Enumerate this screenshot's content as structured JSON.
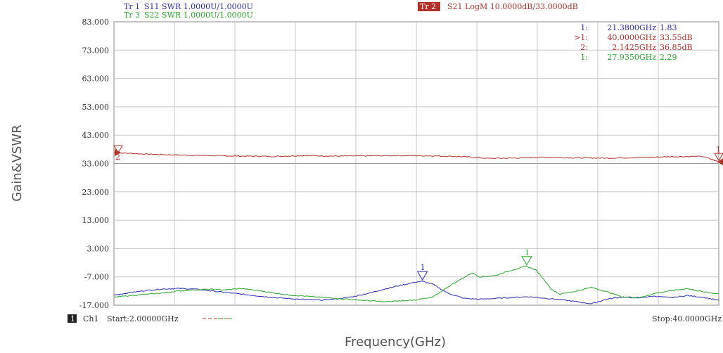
{
  "header": {
    "tr1_tag": "Tr 1",
    "tr1_text": "S11 SWR 1.0000U/1.0000U",
    "tr3_tag": "Tr 3",
    "tr3_text": "S22 SWR 1.0000U/1.0000U",
    "tr2_tag": "Tr 2",
    "tr2_text": "S21 LogM 10.0000dB/33.0000dB"
  },
  "markers_table": [
    {
      "id": "1:",
      "freq": "21.3800GHz",
      "value": "1.83",
      "color": "#2b2bb5"
    },
    {
      "id": ">1:",
      "freq": "40.0000GHz",
      "value": "33.55dB",
      "color": "#b0302a"
    },
    {
      "id": "2:",
      "freq": "2.1425GHz",
      "value": "36.85dB",
      "color": "#b0302a"
    },
    {
      "id": "1:",
      "freq": "27.9350GHz",
      "value": "2.29",
      "color": "#2aa52a"
    }
  ],
  "footer": {
    "ch_tag": "1",
    "ch_label": "Ch1",
    "start": "Start:2.00000GHz",
    "stop": "Stop:40.0000GHz"
  },
  "chart_data": {
    "type": "line",
    "xlabel": "Frequency(GHz)",
    "ylabel": "Gain&VSWR",
    "xlim": [
      2,
      40
    ],
    "ylim": [
      -17,
      83
    ],
    "y_ticks": [
      "83.000",
      "73.000",
      "63.000",
      "53.000",
      "43.000",
      "33.000",
      "23.000",
      "13.000",
      "3.000",
      "-7.000",
      "-17.000"
    ],
    "grid": true,
    "x_gridlines": 10,
    "reference_y": 33,
    "series": [
      {
        "name": "S21 LogM",
        "color": "#b0302a",
        "x": [
          2,
          3,
          4,
          6,
          8,
          10,
          12,
          14,
          16,
          18,
          20,
          22,
          24,
          25.5,
          27,
          29,
          31,
          33,
          35,
          37,
          39,
          40
        ],
        "y": [
          36.8,
          36.6,
          36.3,
          36.0,
          35.8,
          35.6,
          35.5,
          35.8,
          35.6,
          35.7,
          35.8,
          35.7,
          35.4,
          34.8,
          34.9,
          35.2,
          35.0,
          34.9,
          35.1,
          35.4,
          35.5,
          33.6
        ]
      },
      {
        "name": "S11 SWR",
        "color": "#2b2bb5",
        "x": [
          2,
          3,
          4,
          5,
          6,
          7,
          8,
          10,
          12,
          14,
          15,
          16,
          17,
          18,
          19,
          20,
          21,
          21.38,
          22,
          23,
          24,
          25,
          26,
          27,
          28,
          29,
          30,
          31,
          32,
          33,
          34,
          35,
          36,
          37,
          38,
          39,
          40
        ],
        "y": [
          -13.4,
          -12.6,
          -11.8,
          -11.3,
          -11.1,
          -11.3,
          -11.9,
          -13.1,
          -14.3,
          -15.0,
          -15.2,
          -14.8,
          -14.0,
          -12.8,
          -11.3,
          -10.0,
          -8.8,
          -8.6,
          -9.5,
          -12.8,
          -14.6,
          -14.9,
          -14.6,
          -14.3,
          -14.0,
          -14.5,
          -15.0,
          -15.7,
          -16.5,
          -14.8,
          -14.1,
          -14.4,
          -13.8,
          -14.4,
          -13.6,
          -14.2,
          -15.3
        ]
      },
      {
        "name": "S22 SWR",
        "color": "#2aa52a",
        "x": [
          2,
          3,
          4,
          5,
          6,
          7,
          8,
          9,
          10,
          11,
          12,
          13,
          14,
          15,
          16,
          17,
          18,
          19,
          20,
          21,
          22,
          23,
          24,
          24.5,
          25,
          26,
          27,
          27.9,
          28.5,
          29,
          29.5,
          30,
          31,
          32,
          33,
          34,
          35,
          36,
          37,
          38,
          39,
          40
        ],
        "y": [
          -14.2,
          -13.6,
          -13.2,
          -12.7,
          -12.0,
          -11.6,
          -11.4,
          -11.6,
          -11.1,
          -11.8,
          -12.6,
          -13.4,
          -13.8,
          -14.2,
          -14.6,
          -15.0,
          -15.4,
          -15.8,
          -15.5,
          -15.1,
          -14.3,
          -10.5,
          -7.2,
          -5.6,
          -7.0,
          -6.5,
          -4.6,
          -3.3,
          -4.5,
          -7.9,
          -11.4,
          -13.1,
          -12.1,
          -10.7,
          -12.3,
          -14.2,
          -14.4,
          -12.8,
          -11.9,
          -11.1,
          -12.3,
          -13.0
        ]
      }
    ],
    "markers": [
      {
        "series": "S11 SWR",
        "label": "1",
        "x": 21.38,
        "y": -8.6
      },
      {
        "series": "S22 SWR",
        "label": "1",
        "x": 27.935,
        "y": -3.3
      },
      {
        "series": "S21 LogM",
        "label": "2",
        "x": 2.1425,
        "y": 36.85
      },
      {
        "series": "S21 LogM",
        "label": "1",
        "x": 40.0,
        "y": 33.55
      }
    ]
  }
}
